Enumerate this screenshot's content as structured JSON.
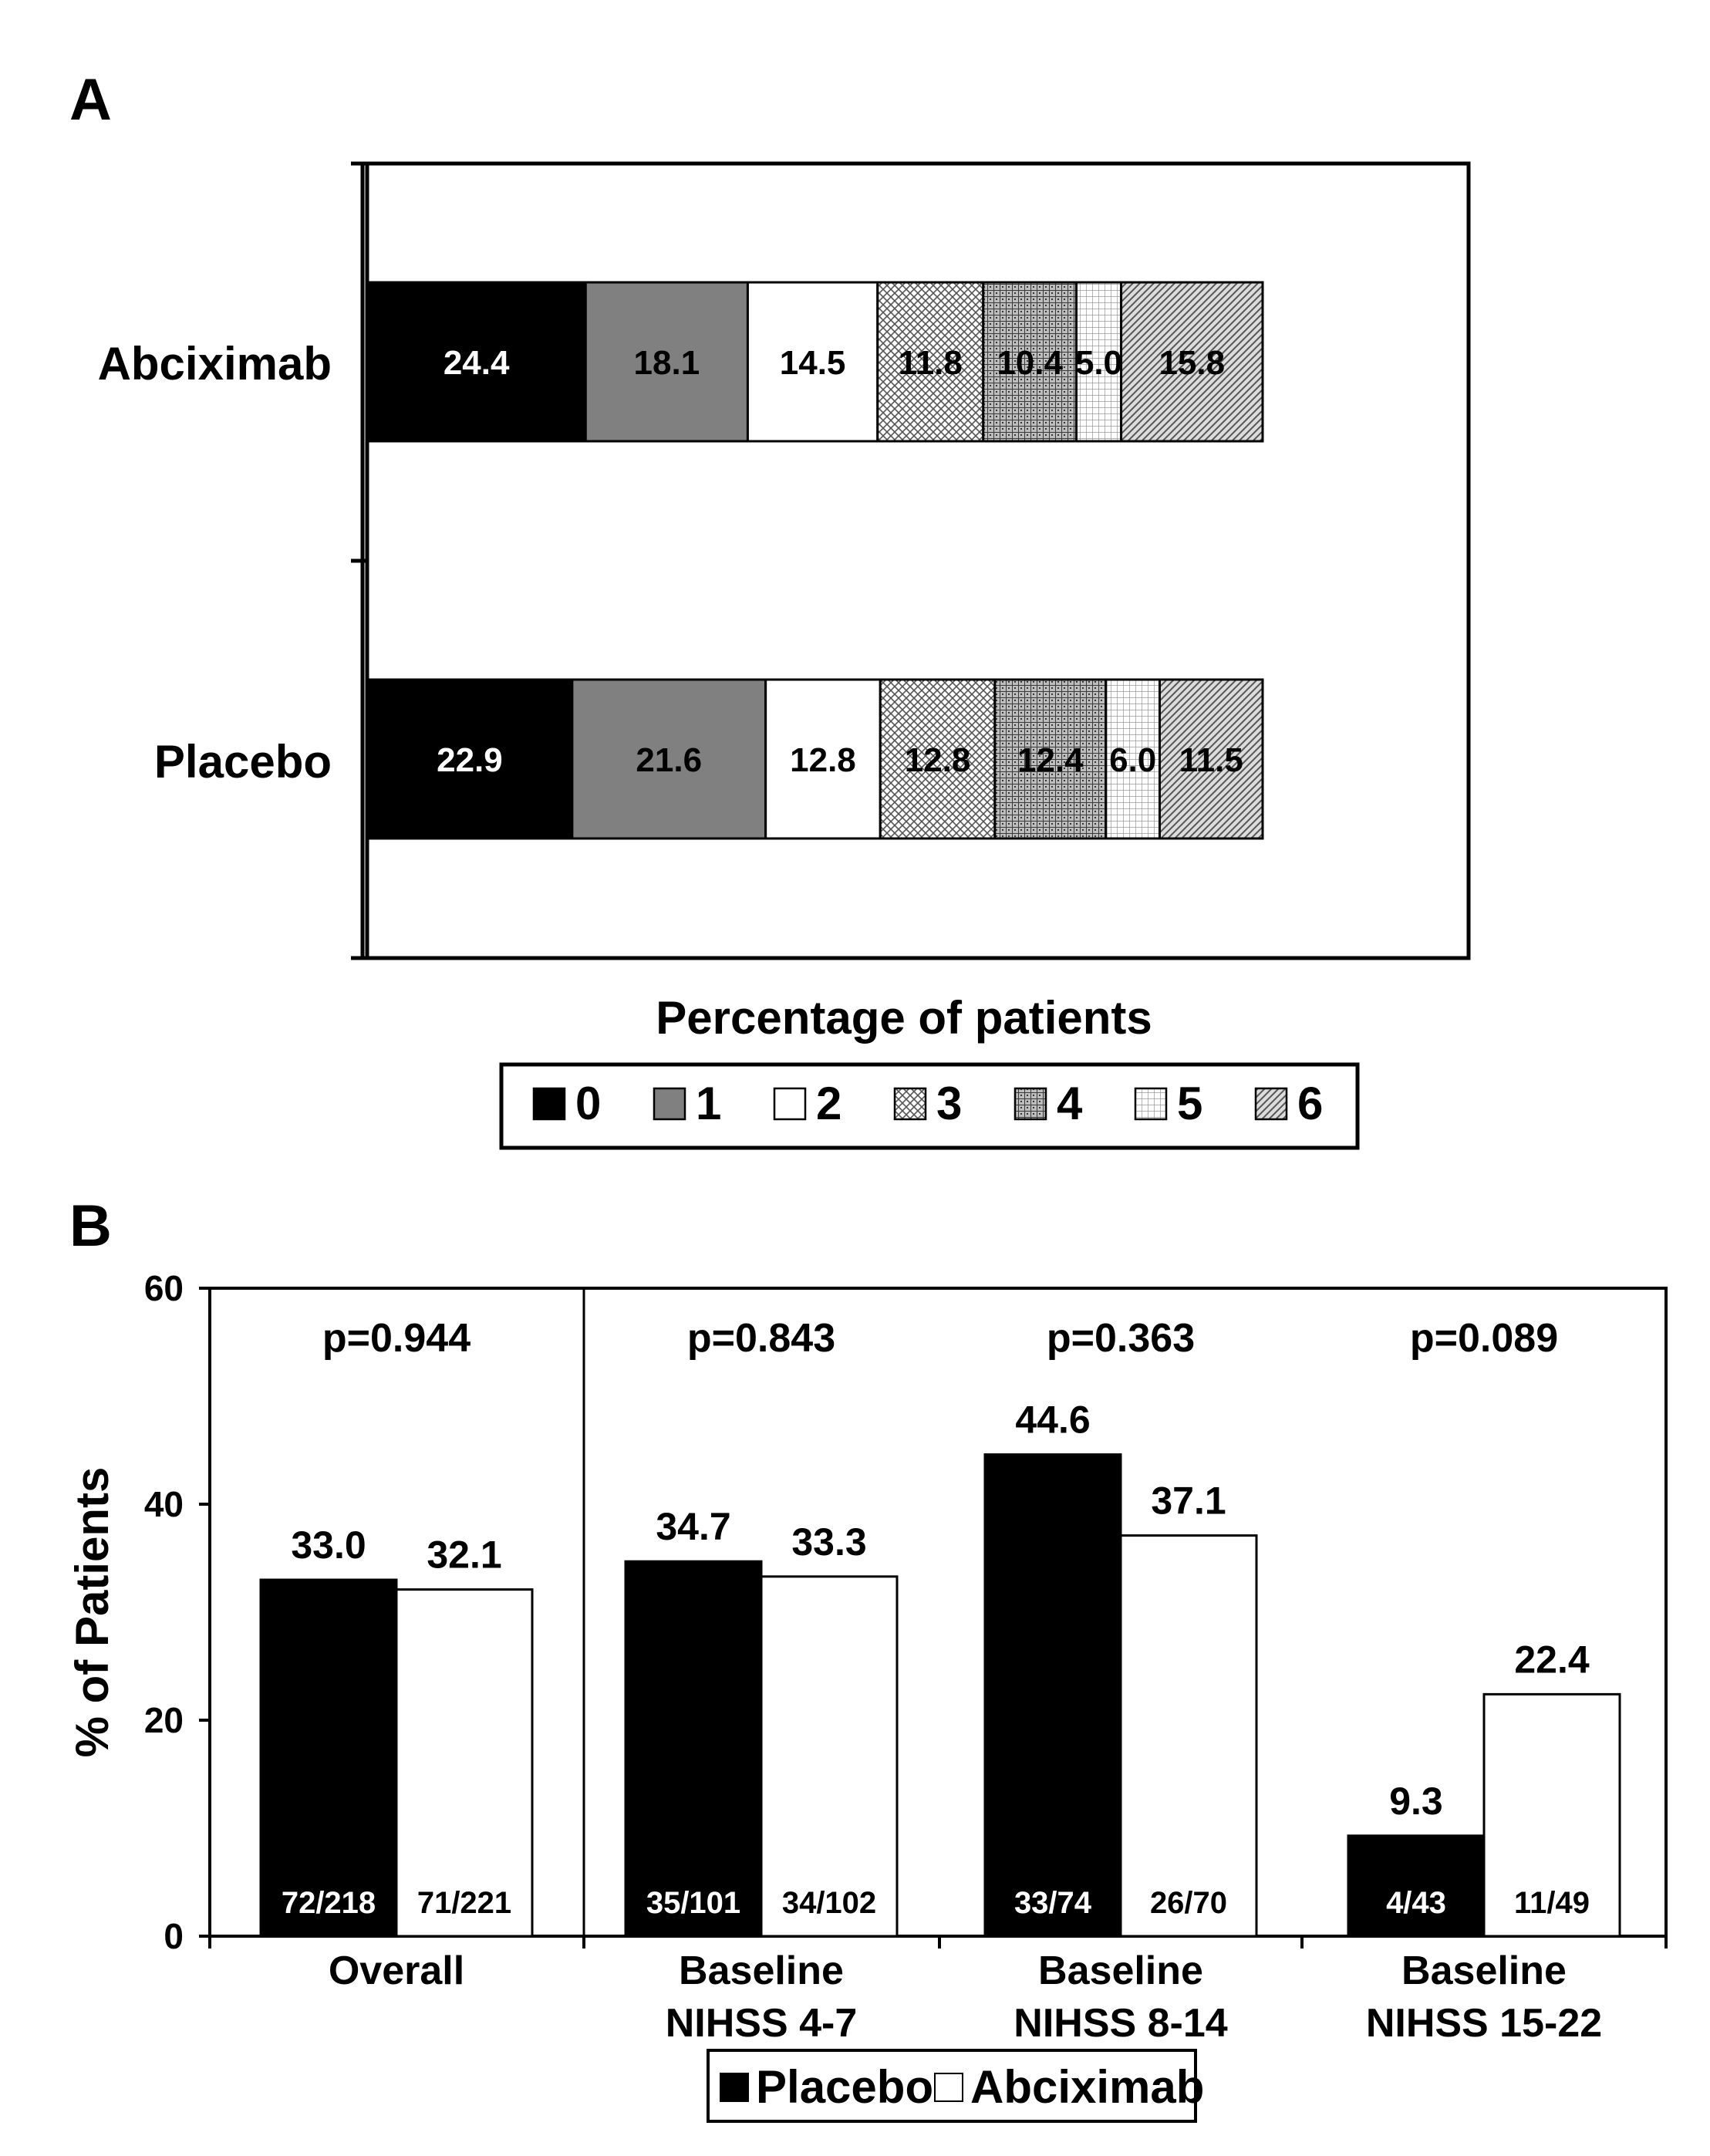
{
  "chart_data": [
    {
      "type": "bar",
      "orientation": "horizontal",
      "stacked": true,
      "panel": "A",
      "categories": [
        "Abciximab",
        "Placebo"
      ],
      "series": [
        {
          "name": "0",
          "values": [
            24.4,
            22.9
          ],
          "pattern": "solid-black"
        },
        {
          "name": "1",
          "values": [
            18.1,
            21.6
          ],
          "pattern": "solid-gray"
        },
        {
          "name": "2",
          "values": [
            14.5,
            12.8
          ],
          "pattern": "white"
        },
        {
          "name": "3",
          "values": [
            11.8,
            12.8
          ],
          "pattern": "diagonal-cross"
        },
        {
          "name": "4",
          "values": [
            10.4,
            12.4
          ],
          "pattern": "grid-dark"
        },
        {
          "name": "5",
          "values": [
            5.0,
            6.0
          ],
          "pattern": "dots"
        },
        {
          "name": "6",
          "values": [
            15.8,
            11.5
          ],
          "pattern": "diagonal-lines"
        }
      ],
      "segment_labels": [
        [
          "24.4",
          "18.1",
          "14.5",
          "11.8",
          "10.4",
          "5.0",
          "15.8"
        ],
        [
          "22.9",
          "21.6",
          "12.8",
          "12.8",
          "12.4",
          "6.0",
          "11.5"
        ]
      ],
      "xlabel": "Percentage of patients",
      "xlim": [
        0,
        120
      ],
      "legend": {
        "position": "bottom",
        "entries": [
          "0",
          "1",
          "2",
          "3",
          "4",
          "5",
          "6"
        ]
      },
      "colors": {
        "solid-black": "#000000",
        "solid-gray": "#808080",
        "white": "#ffffff"
      }
    },
    {
      "type": "bar",
      "orientation": "vertical",
      "panel": "B",
      "categories": [
        {
          "line1": "Overall",
          "line2": ""
        },
        {
          "line1": "Baseline",
          "line2": "NIHSS 4-7"
        },
        {
          "line1": "Baseline",
          "line2": "NIHSS 8-14"
        },
        {
          "line1": "Baseline",
          "line2": "NIHSS 15-22"
        }
      ],
      "series": [
        {
          "name": "Placebo",
          "color": "#000000",
          "values": [
            33.0,
            34.7,
            44.6,
            9.3
          ],
          "value_labels": [
            "33.0",
            "34.7",
            "44.6",
            "9.3"
          ],
          "fractions": [
            "72/218",
            "35/101",
            "33/74",
            "4/43"
          ]
        },
        {
          "name": "Abciximab",
          "color": "#ffffff",
          "values": [
            32.1,
            33.3,
            37.1,
            22.4
          ],
          "value_labels": [
            "32.1",
            "33.3",
            "37.1",
            "22.4"
          ],
          "fractions": [
            "71/221",
            "34/102",
            "26/70",
            "11/49"
          ]
        }
      ],
      "p_values": [
        "p=0.944",
        "p=0.843",
        "p=0.363",
        "p=0.089"
      ],
      "ylabel": "% of Patients",
      "ylim": [
        0,
        60
      ],
      "yticks": [
        "0",
        "20",
        "40",
        "60"
      ],
      "legend": {
        "position": "bottom-center",
        "entries": [
          "Placebo",
          "Abciximab"
        ]
      }
    }
  ],
  "panel_letters": [
    "A",
    "B"
  ]
}
